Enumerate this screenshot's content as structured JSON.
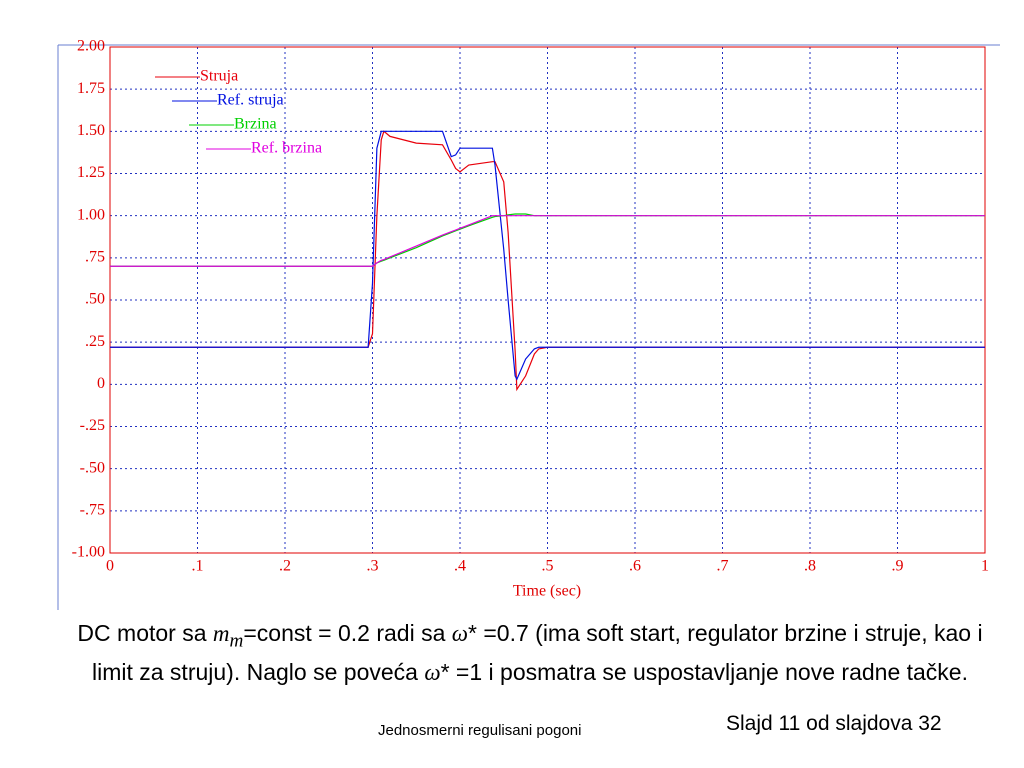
{
  "chart_data": {
    "type": "line",
    "xlabel": "Time (sec)",
    "x": [
      0,
      0.295,
      0.3,
      0.305,
      0.31,
      0.313,
      0.32,
      0.35,
      0.38,
      0.39,
      0.395,
      0.4,
      0.41,
      0.437,
      0.44,
      0.45,
      0.455,
      0.463,
      0.465,
      0.475,
      0.485,
      0.49,
      0.5,
      1
    ],
    "series": [
      {
        "name": "Struja",
        "color": "#e8000b",
        "values": [
          0.22,
          0.22,
          0.3,
          1.0,
          1.45,
          1.5,
          1.47,
          1.43,
          1.42,
          1.33,
          1.28,
          1.26,
          1.3,
          1.32,
          1.32,
          1.2,
          0.9,
          0.2,
          -0.03,
          0.05,
          0.18,
          0.21,
          0.22,
          0.22
        ]
      },
      {
        "name": "Ref. struja",
        "color": "#0010e0",
        "values": [
          0.22,
          0.22,
          0.6,
          1.4,
          1.5,
          1.5,
          1.5,
          1.5,
          1.5,
          1.35,
          1.36,
          1.4,
          1.4,
          1.4,
          1.3,
          0.8,
          0.5,
          0.05,
          0.03,
          0.15,
          0.21,
          0.22,
          0.22,
          0.22
        ]
      },
      {
        "name": "Brzina",
        "color": "#00d000",
        "values": [
          0.7,
          0.7,
          0.7,
          0.72,
          0.73,
          0.735,
          0.75,
          0.81,
          0.88,
          0.9,
          0.91,
          0.92,
          0.94,
          0.99,
          0.995,
          1.0,
          1.005,
          1.01,
          1.01,
          1.01,
          1.0,
          1.0,
          1.0,
          1.0
        ]
      },
      {
        "name": "Ref. brzina",
        "color": "#e000e0",
        "values": [
          0.7,
          0.7,
          0.7,
          0.72,
          0.735,
          0.74,
          0.755,
          0.82,
          0.885,
          0.905,
          0.915,
          0.925,
          0.945,
          1.0,
          1.0,
          1.0,
          1.0,
          1.0,
          1.0,
          1.0,
          1.0,
          1.0,
          1.0,
          1.0
        ]
      }
    ],
    "xlim": [
      0,
      1
    ],
    "xticks": [
      0,
      {
        "value": 0.1,
        "label": ".1"
      },
      {
        "value": 0.2,
        "label": ".2"
      },
      {
        "value": 0.3,
        "label": ".3"
      },
      {
        "value": 0.4,
        "label": ".4"
      },
      {
        "value": 0.5,
        "label": ".5"
      },
      {
        "value": 0.6,
        "label": ".6"
      },
      {
        "value": 0.7,
        "label": ".7"
      },
      {
        "value": 0.8,
        "label": ".8"
      },
      {
        "value": 0.9,
        "label": ".9"
      },
      1
    ],
    "ylim": [
      -1,
      2
    ],
    "yticks": [
      {
        "value": 2,
        "label": "2.00"
      },
      {
        "value": 1.75,
        "label": "1.75"
      },
      {
        "value": 1.5,
        "label": "1.50"
      },
      {
        "value": 1.25,
        "label": "1.25"
      },
      {
        "value": 1,
        "label": "1.00"
      },
      {
        "value": 0.75,
        "label": ".75"
      },
      {
        "value": 0.5,
        "label": ".50"
      },
      {
        "value": 0.25,
        "label": ".25"
      },
      0,
      {
        "value": -0.25,
        "label": "-.25"
      },
      {
        "value": -0.5,
        "label": "-.50"
      },
      {
        "value": -0.75,
        "label": "-.75"
      },
      {
        "value": -1,
        "label": "-1.00"
      }
    ],
    "grid": true
  },
  "caption": [
    "DC motor sa ",
    "m",
    "m",
    "=const = 0.2 radi sa ",
    "ω",
    "* =0.7 (ima soft start, regulator brzine i struje, kao i limit za struju). Naglo se poveća ",
    "ω",
    "* =1 i posmatra se uspostavljanje nove radne tačke."
  ],
  "footer": {
    "course": "Jednosmerni regulisani pogoni",
    "slide": "Slajd 11 od slajdova 32"
  }
}
